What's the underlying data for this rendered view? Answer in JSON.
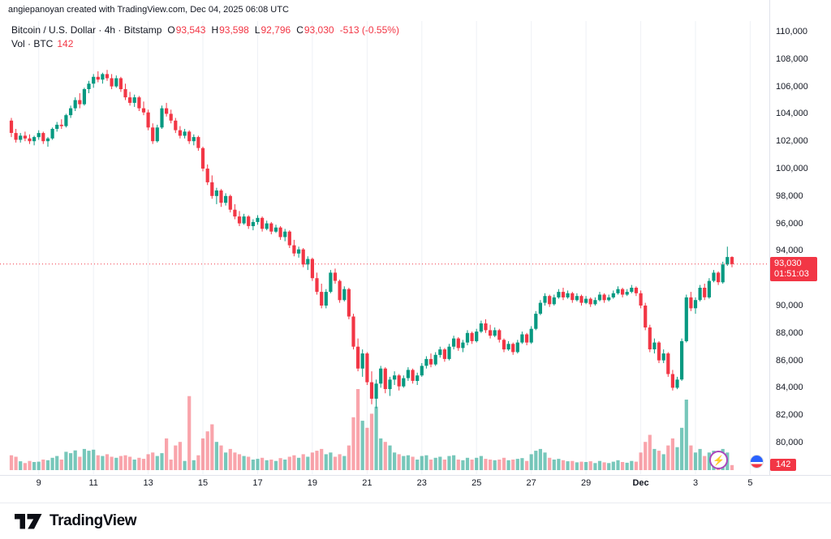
{
  "attribution": "angiepanoyan created with TradingView.com, Dec 04, 2025 06:08 UTC",
  "legend": {
    "title": "Bitcoin / U.S. Dollar · 4h · Bitstamp",
    "ohlc": [
      {
        "label": "O",
        "value": "93,543"
      },
      {
        "label": "H",
        "value": "93,598"
      },
      {
        "label": "L",
        "value": "92,796"
      },
      {
        "label": "C",
        "value": "93,030"
      }
    ],
    "change": "-513 (-0.55%)",
    "vol_label": "Vol · BTC",
    "vol_value": "142"
  },
  "price_badge": {
    "price": "93,030",
    "countdown": "01:51:03"
  },
  "volume_badge": {
    "value": "142"
  },
  "footer": {
    "brand": "TradingView"
  },
  "price_axis": {
    "ticks": [
      {
        "label": "110,000",
        "value": 110000
      },
      {
        "label": "108,000",
        "value": 108000
      },
      {
        "label": "106,000",
        "value": 106000
      },
      {
        "label": "104,000",
        "value": 104000
      },
      {
        "label": "102,000",
        "value": 102000
      },
      {
        "label": "100,000",
        "value": 100000
      },
      {
        "label": "98,000",
        "value": 98000
      },
      {
        "label": "96,000",
        "value": 96000
      },
      {
        "label": "94,000",
        "value": 94000
      },
      {
        "label": "90,000",
        "value": 90000
      },
      {
        "label": "88,000",
        "value": 88000
      },
      {
        "label": "86,000",
        "value": 86000
      },
      {
        "label": "84,000",
        "value": 84000
      },
      {
        "label": "82,000",
        "value": 82000
      },
      {
        "label": "80,000",
        "value": 80000
      }
    ]
  },
  "time_axis": {
    "ticks": [
      {
        "label": "9",
        "i": 6
      },
      {
        "label": "11",
        "i": 18
      },
      {
        "label": "13",
        "i": 30
      },
      {
        "label": "15",
        "i": 42
      },
      {
        "label": "17",
        "i": 54
      },
      {
        "label": "19",
        "i": 66
      },
      {
        "label": "21",
        "i": 78
      },
      {
        "label": "23",
        "i": 90
      },
      {
        "label": "25",
        "i": 102
      },
      {
        "label": "27",
        "i": 114
      },
      {
        "label": "29",
        "i": 126
      },
      {
        "label": "Dec",
        "i": 138,
        "bold": true
      },
      {
        "label": "3",
        "i": 150
      },
      {
        "label": "5",
        "i": 162
      }
    ]
  },
  "chart_data": {
    "type": "candlestick",
    "symbol": "Bitcoin / U.S. Dollar",
    "interval": "4h",
    "exchange": "Bitstamp",
    "last_price": 93030,
    "current": {
      "open": 93543,
      "high": 93598,
      "low": 92796,
      "close": 93030,
      "change": -513,
      "change_pct": -0.55,
      "volume_btc": 142
    },
    "price_axis_range": [
      80000,
      110000
    ],
    "colors": {
      "up": "#089981",
      "down": "#F23645",
      "vol_up": "rgba(8,153,129,0.55)",
      "vol_down": "rgba(242,54,69,0.45)",
      "grid": "#eef1f6",
      "last_line": "#F23645"
    },
    "candles": [
      [
        103500,
        103700,
        102300,
        102600,
        420
      ],
      [
        102600,
        102900,
        101900,
        102100,
        380
      ],
      [
        102100,
        102600,
        101900,
        102400,
        250
      ],
      [
        102400,
        102700,
        102000,
        102200,
        200
      ],
      [
        102200,
        102500,
        101800,
        102000,
        260
      ],
      [
        102000,
        102400,
        101700,
        102300,
        230
      ],
      [
        102300,
        102800,
        102100,
        102600,
        240
      ],
      [
        102600,
        102700,
        101800,
        102000,
        300
      ],
      [
        102000,
        102300,
        101600,
        102200,
        280
      ],
      [
        102200,
        103000,
        102100,
        102900,
        350
      ],
      [
        102900,
        103400,
        102700,
        103200,
        400
      ],
      [
        103200,
        103600,
        102900,
        103100,
        300
      ],
      [
        103100,
        104000,
        103000,
        103900,
        520
      ],
      [
        103900,
        104600,
        103700,
        104400,
        480
      ],
      [
        104400,
        105200,
        104200,
        105000,
        560
      ],
      [
        105000,
        105500,
        104400,
        104700,
        380
      ],
      [
        104700,
        105900,
        104600,
        105800,
        600
      ],
      [
        105800,
        106400,
        105500,
        106200,
        550
      ],
      [
        106200,
        106900,
        105900,
        106700,
        580
      ],
      [
        106700,
        107100,
        106300,
        106500,
        420
      ],
      [
        106500,
        107000,
        106200,
        106900,
        400
      ],
      [
        106900,
        107200,
        106400,
        106600,
        450
      ],
      [
        106600,
        106900,
        105800,
        106000,
        380
      ],
      [
        106000,
        106800,
        105900,
        106600,
        350
      ],
      [
        106600,
        106700,
        105600,
        105800,
        400
      ],
      [
        105800,
        106200,
        105000,
        105200,
        420
      ],
      [
        105200,
        105600,
        104600,
        104800,
        380
      ],
      [
        104800,
        105400,
        104500,
        105200,
        300
      ],
      [
        105200,
        105300,
        104200,
        104400,
        350
      ],
      [
        104400,
        104900,
        103900,
        104100,
        320
      ],
      [
        104100,
        104300,
        102800,
        103000,
        450
      ],
      [
        103000,
        103300,
        101800,
        102000,
        500
      ],
      [
        102000,
        103200,
        101900,
        103000,
        400
      ],
      [
        103000,
        104600,
        102900,
        104400,
        480
      ],
      [
        104400,
        104800,
        103800,
        104000,
        900
      ],
      [
        104000,
        104300,
        103300,
        103500,
        300
      ],
      [
        103500,
        103700,
        102600,
        102800,
        700
      ],
      [
        102800,
        103100,
        102200,
        102400,
        800
      ],
      [
        102400,
        102900,
        102200,
        102700,
        260
      ],
      [
        102700,
        102800,
        101800,
        102000,
        2100
      ],
      [
        102000,
        102500,
        101700,
        102300,
        280
      ],
      [
        102300,
        102400,
        101300,
        101500,
        420
      ],
      [
        101500,
        101600,
        99800,
        100000,
        900
      ],
      [
        100000,
        100300,
        98800,
        99000,
        1100
      ],
      [
        99000,
        99500,
        97800,
        98000,
        1300
      ],
      [
        98000,
        98600,
        97400,
        98400,
        800
      ],
      [
        98400,
        98500,
        97200,
        97500,
        700
      ],
      [
        97500,
        98200,
        97300,
        98000,
        500
      ],
      [
        98000,
        98100,
        96800,
        97000,
        600
      ],
      [
        97000,
        97400,
        96300,
        96500,
        500
      ],
      [
        96500,
        96900,
        95800,
        96000,
        450
      ],
      [
        96000,
        96700,
        95900,
        96500,
        400
      ],
      [
        96500,
        96600,
        95600,
        95800,
        380
      ],
      [
        95800,
        96300,
        95500,
        96100,
        300
      ],
      [
        96100,
        96600,
        95900,
        96400,
        320
      ],
      [
        96400,
        96500,
        95400,
        95600,
        350
      ],
      [
        95600,
        96200,
        95500,
        96000,
        280
      ],
      [
        96000,
        96100,
        95200,
        95400,
        300
      ],
      [
        95400,
        95900,
        95300,
        95700,
        260
      ],
      [
        95700,
        95800,
        94800,
        95000,
        340
      ],
      [
        95000,
        95600,
        94700,
        95400,
        300
      ],
      [
        95400,
        95500,
        94200,
        94400,
        380
      ],
      [
        94400,
        94800,
        93600,
        93800,
        420
      ],
      [
        93800,
        94300,
        93500,
        94100,
        350
      ],
      [
        94100,
        94200,
        92800,
        93000,
        450
      ],
      [
        93000,
        93600,
        92600,
        93400,
        380
      ],
      [
        93400,
        93500,
        91800,
        92000,
        500
      ],
      [
        92000,
        92400,
        90800,
        91000,
        550
      ],
      [
        91000,
        91600,
        89800,
        90000,
        600
      ],
      [
        90000,
        91200,
        89800,
        91000,
        450
      ],
      [
        91000,
        92600,
        90900,
        92400,
        500
      ],
      [
        92400,
        92700,
        91600,
        91800,
        380
      ],
      [
        91800,
        91900,
        90200,
        90400,
        450
      ],
      [
        90400,
        91400,
        90300,
        91200,
        400
      ],
      [
        91200,
        91300,
        89000,
        89200,
        700
      ],
      [
        89200,
        89400,
        86800,
        87000,
        1500
      ],
      [
        87000,
        87600,
        85200,
        85400,
        2300
      ],
      [
        85400,
        86800,
        84800,
        86500,
        1400
      ],
      [
        86500,
        86600,
        84200,
        84400,
        1200
      ],
      [
        84400,
        85200,
        82800,
        83200,
        1600
      ],
      [
        83200,
        84600,
        82500,
        84300,
        1800
      ],
      [
        84300,
        85600,
        84000,
        85400,
        900
      ],
      [
        85400,
        85500,
        83600,
        83900,
        800
      ],
      [
        83900,
        84800,
        83400,
        84600,
        700
      ],
      [
        84600,
        85200,
        84200,
        84900,
        500
      ],
      [
        84900,
        85000,
        83800,
        84100,
        450
      ],
      [
        84100,
        84900,
        84000,
        84700,
        400
      ],
      [
        84700,
        85500,
        84500,
        85300,
        420
      ],
      [
        85300,
        85400,
        84300,
        84500,
        380
      ],
      [
        84500,
        85100,
        84200,
        84900,
        300
      ],
      [
        84900,
        85800,
        84800,
        85600,
        400
      ],
      [
        85600,
        86300,
        85400,
        86100,
        420
      ],
      [
        86100,
        86500,
        85500,
        85700,
        300
      ],
      [
        85700,
        86600,
        85600,
        86400,
        350
      ],
      [
        86400,
        87000,
        86200,
        86800,
        380
      ],
      [
        86800,
        86900,
        85900,
        86100,
        300
      ],
      [
        86100,
        87200,
        86000,
        87000,
        400
      ],
      [
        87000,
        87800,
        86800,
        87600,
        420
      ],
      [
        87600,
        87700,
        86700,
        86900,
        300
      ],
      [
        86900,
        87500,
        86600,
        87300,
        280
      ],
      [
        87300,
        88200,
        87100,
        88000,
        350
      ],
      [
        88000,
        88100,
        87200,
        87400,
        300
      ],
      [
        87400,
        88300,
        87300,
        88100,
        350
      ],
      [
        88100,
        88900,
        88000,
        88700,
        400
      ],
      [
        88700,
        89000,
        88000,
        88200,
        320
      ],
      [
        88200,
        88600,
        87600,
        87800,
        300
      ],
      [
        87800,
        88400,
        87700,
        88200,
        280
      ],
      [
        88200,
        88300,
        87300,
        87500,
        300
      ],
      [
        87500,
        87600,
        86600,
        86800,
        350
      ],
      [
        86800,
        87400,
        86700,
        87200,
        280
      ],
      [
        87200,
        87300,
        86400,
        86600,
        300
      ],
      [
        86600,
        87500,
        86500,
        87300,
        320
      ],
      [
        87300,
        88100,
        87200,
        87900,
        340
      ],
      [
        87900,
        88000,
        87100,
        87300,
        260
      ],
      [
        87300,
        88500,
        87200,
        88300,
        450
      ],
      [
        88300,
        89600,
        88200,
        89400,
        550
      ],
      [
        89400,
        90400,
        89300,
        90200,
        600
      ],
      [
        90200,
        90900,
        90000,
        90700,
        500
      ],
      [
        90700,
        90800,
        89900,
        90100,
        350
      ],
      [
        90100,
        90800,
        90000,
        90600,
        300
      ],
      [
        90600,
        91200,
        90500,
        91000,
        320
      ],
      [
        91000,
        91300,
        90400,
        90600,
        280
      ],
      [
        90600,
        91100,
        90500,
        90900,
        250
      ],
      [
        90900,
        91000,
        90200,
        90400,
        260
      ],
      [
        90400,
        90900,
        90300,
        90700,
        220
      ],
      [
        90700,
        90800,
        90000,
        90200,
        240
      ],
      [
        90200,
        90700,
        90100,
        90500,
        230
      ],
      [
        90500,
        90600,
        89900,
        90100,
        250
      ],
      [
        90100,
        90600,
        90000,
        90400,
        200
      ],
      [
        90400,
        91000,
        90300,
        90800,
        260
      ],
      [
        90800,
        90900,
        90200,
        90400,
        220
      ],
      [
        90400,
        90800,
        90300,
        90600,
        200
      ],
      [
        90600,
        91100,
        90500,
        90900,
        240
      ],
      [
        90900,
        91400,
        90800,
        91200,
        280
      ],
      [
        91200,
        91300,
        90600,
        90800,
        230
      ],
      [
        90800,
        91200,
        90700,
        91000,
        210
      ],
      [
        91000,
        91500,
        90900,
        91300,
        260
      ],
      [
        91300,
        91400,
        90700,
        90900,
        240
      ],
      [
        90900,
        91100,
        89800,
        90000,
        500
      ],
      [
        90000,
        90200,
        88200,
        88400,
        800
      ],
      [
        88400,
        88600,
        86600,
        86800,
        1000
      ],
      [
        86800,
        87600,
        86500,
        87300,
        600
      ],
      [
        87300,
        87400,
        85800,
        86000,
        550
      ],
      [
        86000,
        86800,
        85800,
        86500,
        450
      ],
      [
        86500,
        86600,
        84800,
        85000,
        700
      ],
      [
        85000,
        85300,
        83800,
        84000,
        900
      ],
      [
        84000,
        84800,
        83900,
        84600,
        650
      ],
      [
        84600,
        87600,
        84500,
        87400,
        1200
      ],
      [
        87400,
        90800,
        87300,
        90600,
        2000
      ],
      [
        90600,
        91000,
        89600,
        89800,
        700
      ],
      [
        89800,
        90600,
        89400,
        90400,
        500
      ],
      [
        90400,
        91500,
        90300,
        91300,
        600
      ],
      [
        91300,
        91600,
        90400,
        90600,
        400
      ],
      [
        90600,
        92000,
        90500,
        91800,
        500
      ],
      [
        91800,
        92600,
        91700,
        92400,
        550
      ],
      [
        92400,
        92500,
        91500,
        91700,
        400
      ],
      [
        91700,
        93200,
        91600,
        93000,
        600
      ],
      [
        93000,
        94300,
        92900,
        93543,
        500
      ],
      [
        93543,
        93598,
        92796,
        93030,
        142
      ]
    ]
  }
}
